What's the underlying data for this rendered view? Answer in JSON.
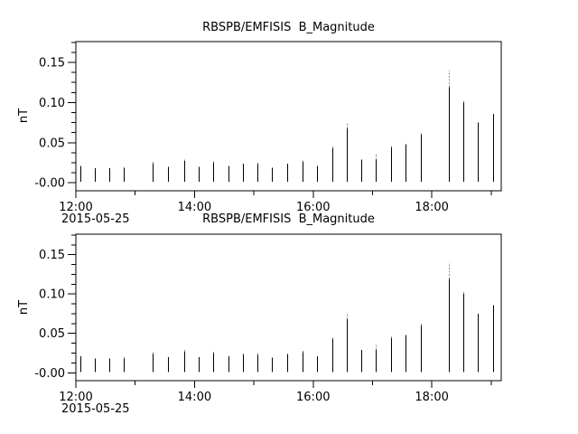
{
  "figure": {
    "background_color": "#ffffff",
    "line_color": "#000000",
    "cap_color": "#8c8c8c"
  },
  "chart_data": [
    {
      "type": "line",
      "subtype": "impulse-spikes",
      "title": "RBSPB/EMFISIS  B_Magnitude",
      "ylabel": "nT",
      "date_label": "2015-05-25",
      "ylim": [
        -0.01,
        0.176
      ],
      "xlim_hours": [
        0,
        7.17
      ],
      "x_start_time": "12:00",
      "grid": "off",
      "legend": "none",
      "x_ticks": [
        {
          "t": 0,
          "label": "12:00",
          "major": true
        },
        {
          "t": 1,
          "label": "",
          "major": false
        },
        {
          "t": 2,
          "label": "14:00",
          "major": true
        },
        {
          "t": 3,
          "label": "",
          "major": false
        },
        {
          "t": 4,
          "label": "16:00",
          "major": true
        },
        {
          "t": 5,
          "label": "",
          "major": false
        },
        {
          "t": 6,
          "label": "18:00",
          "major": true
        },
        {
          "t": 7,
          "label": "",
          "major": false
        }
      ],
      "y_ticks": [
        {
          "value": 0.0,
          "label": "-0.00"
        },
        {
          "value": 0.05,
          "label": "0.05"
        },
        {
          "value": 0.1,
          "label": "0.10"
        },
        {
          "value": 0.15,
          "label": "0.15"
        }
      ],
      "y_minor_step": 0.0125,
      "baseline": 0.001,
      "spikes": [
        {
          "t": 0.07,
          "v": 0.021
        },
        {
          "t": 0.32,
          "v": 0.018
        },
        {
          "t": 0.57,
          "v": 0.018
        },
        {
          "t": 0.81,
          "v": 0.018,
          "cap": 0.002
        },
        {
          "t": 1.29,
          "v": 0.024,
          "cap": 0.002
        },
        {
          "t": 1.55,
          "v": 0.02
        },
        {
          "t": 1.82,
          "v": 0.027,
          "cap": 0.002
        },
        {
          "t": 2.07,
          "v": 0.02
        },
        {
          "t": 2.32,
          "v": 0.025,
          "cap": 0.002
        },
        {
          "t": 2.57,
          "v": 0.021
        },
        {
          "t": 2.82,
          "v": 0.024
        },
        {
          "t": 3.06,
          "v": 0.023,
          "cap": 0.002
        },
        {
          "t": 3.31,
          "v": 0.019
        },
        {
          "t": 3.56,
          "v": 0.024
        },
        {
          "t": 3.82,
          "v": 0.026,
          "cap": 0.002
        },
        {
          "t": 4.06,
          "v": 0.021
        },
        {
          "t": 4.32,
          "v": 0.043,
          "cap": 0.002
        },
        {
          "t": 4.57,
          "v": 0.068,
          "cap": 0.007
        },
        {
          "t": 4.81,
          "v": 0.029
        },
        {
          "t": 5.06,
          "v": 0.029,
          "cap": 0.007
        },
        {
          "t": 5.31,
          "v": 0.044,
          "cap": 0.002
        },
        {
          "t": 5.56,
          "v": 0.048
        },
        {
          "t": 5.81,
          "v": 0.06,
          "cap": 0.004
        },
        {
          "t": 6.28,
          "v": 0.119,
          "cap": 0.021
        },
        {
          "t": 6.53,
          "v": 0.1,
          "cap": 0.004
        },
        {
          "t": 6.78,
          "v": 0.075
        },
        {
          "t": 7.04,
          "v": 0.086
        }
      ]
    },
    {
      "type": "line",
      "subtype": "impulse-spikes",
      "title": "RBSPB/EMFISIS  B_Magnitude",
      "ylabel": "nT",
      "date_label": "2015-05-25",
      "ylim": [
        -0.01,
        0.176
      ],
      "xlim_hours": [
        0,
        7.17
      ],
      "x_start_time": "12:00",
      "grid": "off",
      "legend": "none",
      "x_ticks": [
        {
          "t": 0,
          "label": "12:00",
          "major": true
        },
        {
          "t": 1,
          "label": "",
          "major": false
        },
        {
          "t": 2,
          "label": "14:00",
          "major": true
        },
        {
          "t": 3,
          "label": "",
          "major": false
        },
        {
          "t": 4,
          "label": "16:00",
          "major": true
        },
        {
          "t": 5,
          "label": "",
          "major": false
        },
        {
          "t": 6,
          "label": "18:00",
          "major": true
        },
        {
          "t": 7,
          "label": "",
          "major": false
        }
      ],
      "y_ticks": [
        {
          "value": 0.0,
          "label": "-0.00"
        },
        {
          "value": 0.05,
          "label": "0.05"
        },
        {
          "value": 0.1,
          "label": "0.10"
        },
        {
          "value": 0.15,
          "label": "0.15"
        }
      ],
      "y_minor_step": 0.0125,
      "baseline": 0.001,
      "spikes": [
        {
          "t": 0.07,
          "v": 0.021
        },
        {
          "t": 0.32,
          "v": 0.018
        },
        {
          "t": 0.57,
          "v": 0.018
        },
        {
          "t": 0.81,
          "v": 0.018,
          "cap": 0.002
        },
        {
          "t": 1.29,
          "v": 0.024,
          "cap": 0.002
        },
        {
          "t": 1.55,
          "v": 0.02
        },
        {
          "t": 1.82,
          "v": 0.027,
          "cap": 0.002
        },
        {
          "t": 2.07,
          "v": 0.02
        },
        {
          "t": 2.32,
          "v": 0.025,
          "cap": 0.002
        },
        {
          "t": 2.57,
          "v": 0.021
        },
        {
          "t": 2.82,
          "v": 0.024
        },
        {
          "t": 3.06,
          "v": 0.023,
          "cap": 0.002
        },
        {
          "t": 3.31,
          "v": 0.019
        },
        {
          "t": 3.56,
          "v": 0.024
        },
        {
          "t": 3.82,
          "v": 0.026,
          "cap": 0.002
        },
        {
          "t": 4.06,
          "v": 0.021
        },
        {
          "t": 4.32,
          "v": 0.043,
          "cap": 0.002
        },
        {
          "t": 4.57,
          "v": 0.068,
          "cap": 0.007
        },
        {
          "t": 4.81,
          "v": 0.029
        },
        {
          "t": 5.06,
          "v": 0.029,
          "cap": 0.007
        },
        {
          "t": 5.31,
          "v": 0.044,
          "cap": 0.002
        },
        {
          "t": 5.56,
          "v": 0.048
        },
        {
          "t": 5.81,
          "v": 0.06,
          "cap": 0.004
        },
        {
          "t": 6.28,
          "v": 0.119,
          "cap": 0.021
        },
        {
          "t": 6.53,
          "v": 0.1,
          "cap": 0.004
        },
        {
          "t": 6.78,
          "v": 0.075
        },
        {
          "t": 7.04,
          "v": 0.086
        }
      ]
    }
  ]
}
